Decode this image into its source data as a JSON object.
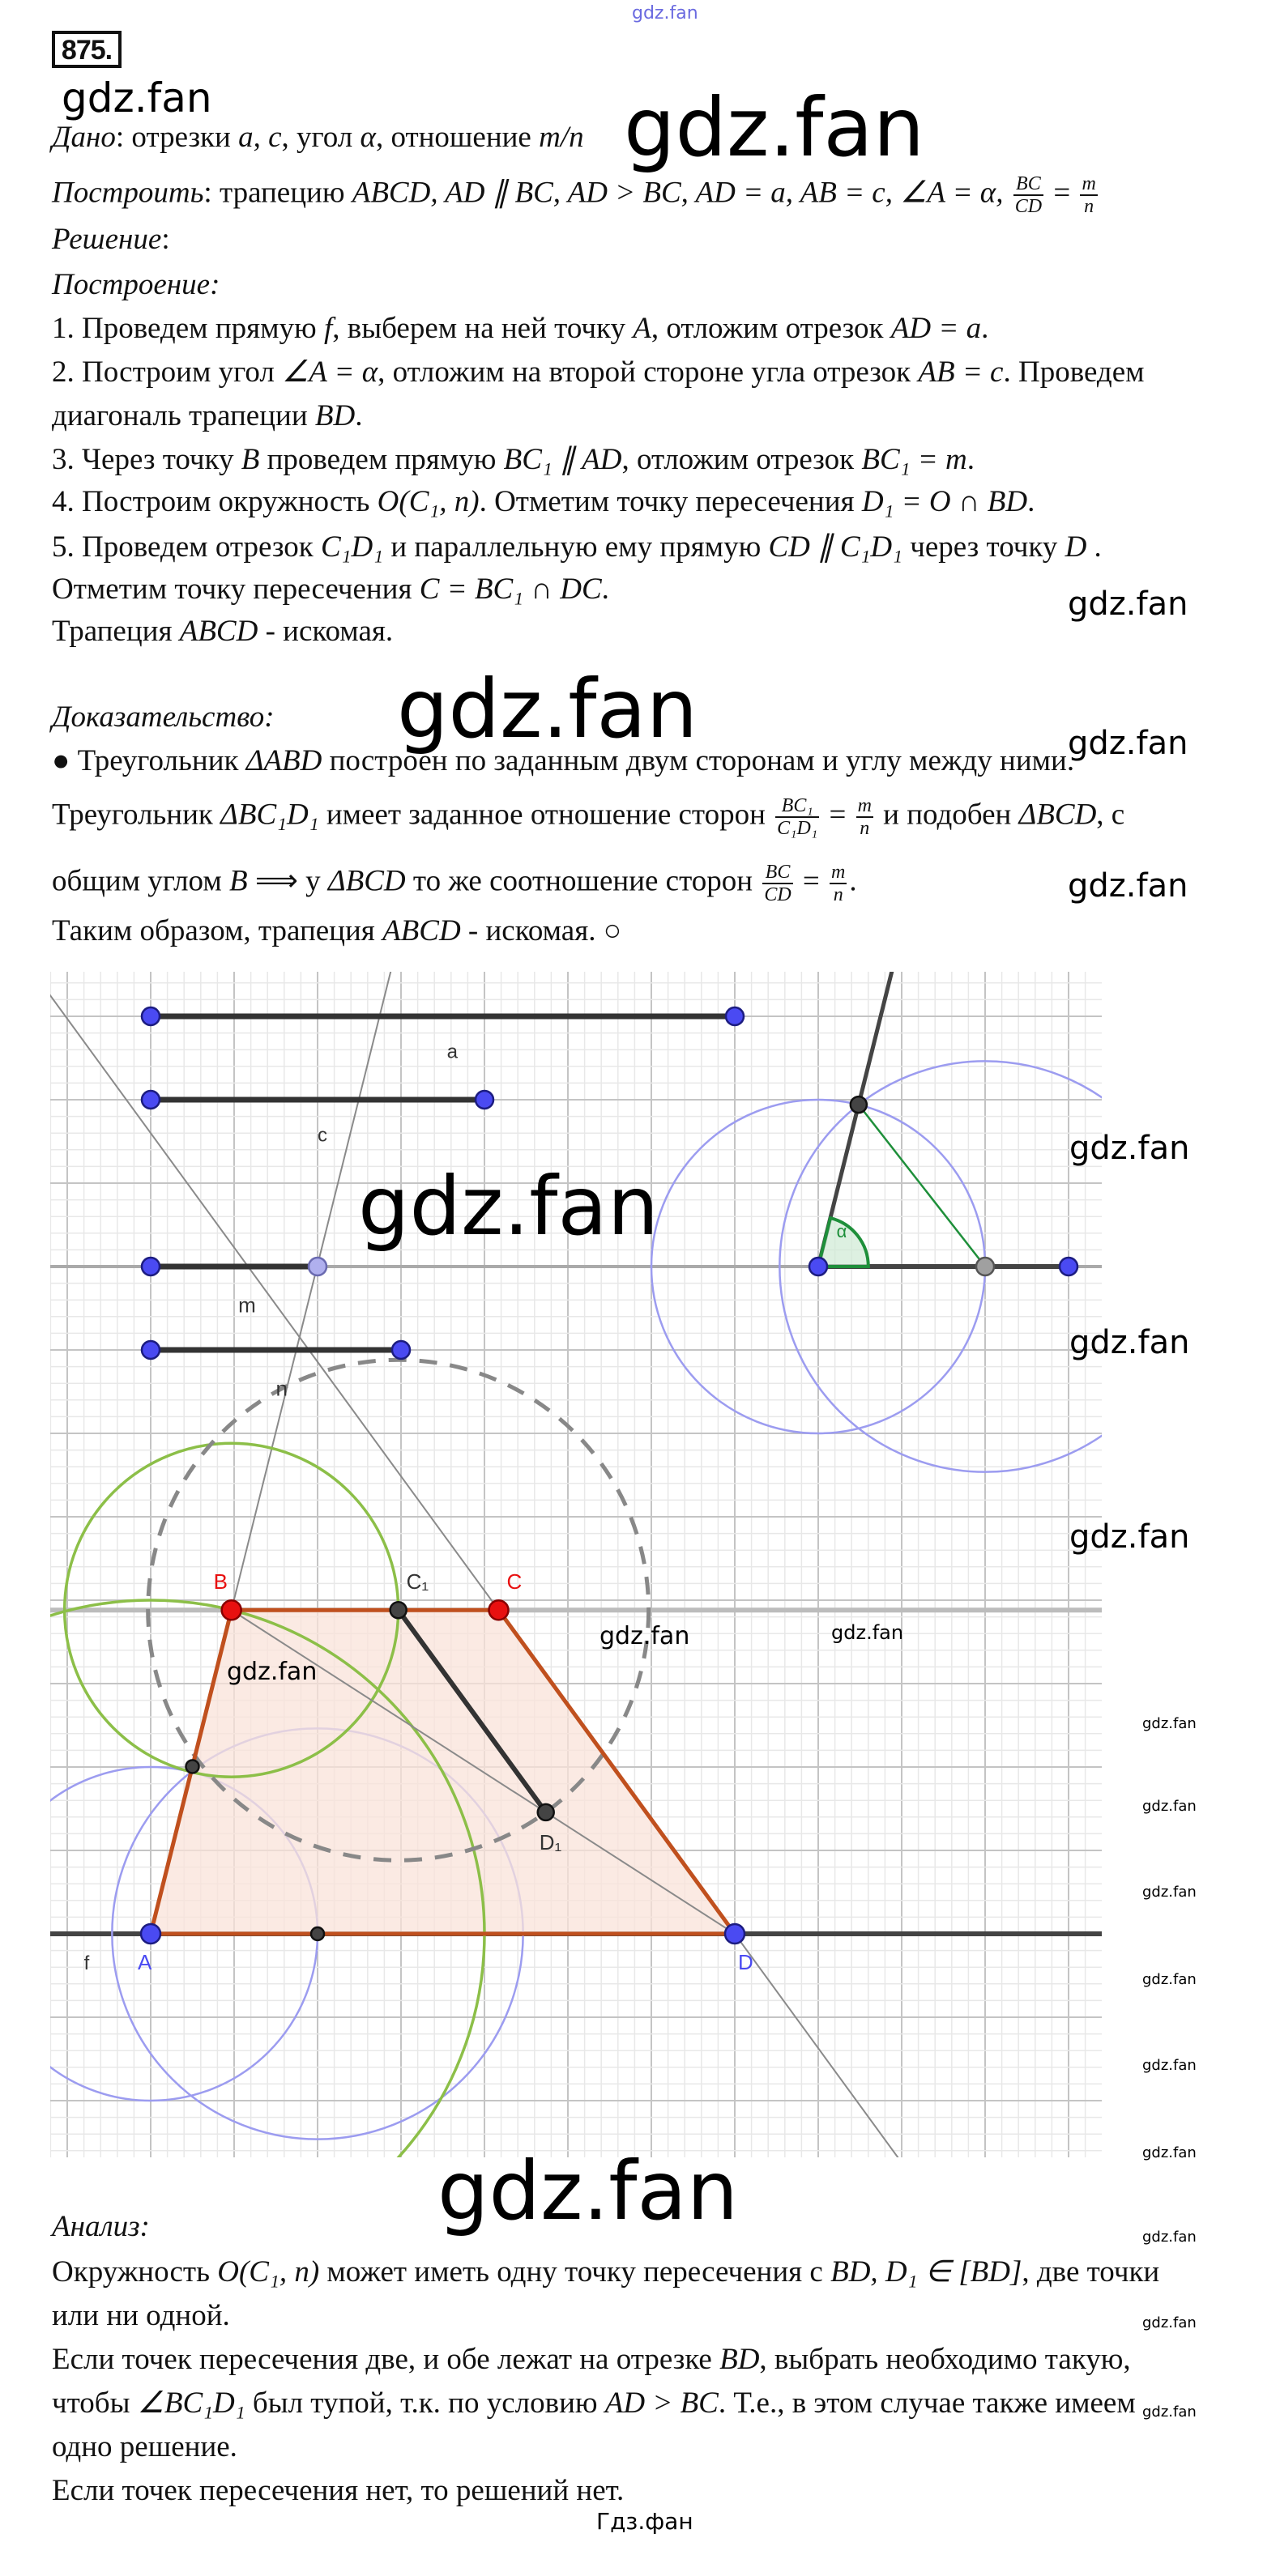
{
  "problem_number": "875.",
  "text": {
    "lines": [
      {
        "parts": [
          [
            "i",
            "Дано"
          ],
          [
            "t",
            ": отрезки "
          ],
          [
            "i",
            "a, c"
          ],
          [
            "t",
            ", угол "
          ],
          [
            "i",
            "α"
          ],
          [
            "t",
            ", отношение "
          ],
          [
            "i",
            "m/n"
          ]
        ]
      },
      {
        "parts": [
          [
            "i",
            "Построить"
          ],
          [
            "t",
            ": трапецию "
          ],
          [
            "i",
            "ABCD, AD ∥ BC, AD > BC, AD = a, AB = c, ∠A = α, "
          ],
          [
            "f",
            "BC",
            "CD"
          ],
          [
            "t",
            " = "
          ],
          [
            "f",
            "m",
            "n"
          ]
        ]
      },
      {
        "parts": [
          [
            "i",
            "Решение"
          ],
          [
            "t",
            ":"
          ]
        ]
      },
      {
        "parts": [
          [
            "i",
            "Построение:"
          ]
        ]
      },
      {
        "parts": [
          [
            "t",
            "1. Проведем прямую "
          ],
          [
            "i",
            "f"
          ],
          [
            "t",
            ", выберем на ней точку "
          ],
          [
            "i",
            "A"
          ],
          [
            "t",
            ", отложим отрезок "
          ],
          [
            "i",
            "AD = a"
          ],
          [
            "t",
            "."
          ]
        ]
      },
      {
        "parts": [
          [
            "t",
            "2. Построим угол "
          ],
          [
            "i",
            "∠A = α"
          ],
          [
            "t",
            ", отложим на второй стороне угла отрезок "
          ],
          [
            "i",
            "AB = c"
          ],
          [
            "t",
            ". Проведем"
          ]
        ]
      },
      {
        "parts": [
          [
            "t",
            "диагональ трапеции "
          ],
          [
            "i",
            "BD"
          ],
          [
            "t",
            "."
          ]
        ]
      },
      {
        "parts": [
          [
            "t",
            "3. Через точку "
          ],
          [
            "i",
            "B"
          ],
          [
            "t",
            " проведем прямую "
          ],
          [
            "i",
            "BC₁ ∥ AD"
          ],
          [
            "t",
            ", отложим отрезок "
          ],
          [
            "i",
            "BC₁ = m"
          ],
          [
            "t",
            "."
          ]
        ]
      },
      {
        "parts": [
          [
            "t",
            "4. Построим окружность "
          ],
          [
            "i",
            "O(C₁, n)"
          ],
          [
            "t",
            ". Отметим точку пересечения "
          ],
          [
            "i",
            "D₁ = O ∩ BD"
          ],
          [
            "t",
            "."
          ]
        ]
      },
      {
        "parts": [
          [
            "t",
            "5. Проведем отрезок "
          ],
          [
            "i",
            "C₁D₁"
          ],
          [
            "t",
            " и параллельную ему прямую "
          ],
          [
            "i",
            "CD ∥ C₁D₁"
          ],
          [
            "t",
            " через точку "
          ],
          [
            "i",
            "D"
          ],
          [
            "t",
            " ."
          ]
        ]
      },
      {
        "parts": [
          [
            "t",
            "Отметим точку пересечения "
          ],
          [
            "i",
            "C = BC₁ ∩ DC"
          ],
          [
            "t",
            "."
          ]
        ]
      },
      {
        "parts": [
          [
            "t",
            "Трапеция "
          ],
          [
            "i",
            "ABCD"
          ],
          [
            "t",
            " - искомая."
          ]
        ]
      },
      {
        "parts": [
          [
            "i",
            "Доказательство:"
          ]
        ]
      },
      {
        "parts": [
          [
            "t",
            "● Треугольник "
          ],
          [
            "i",
            "ΔABD"
          ],
          [
            "t",
            " построен по заданным двум сторонам и углу между ними."
          ]
        ]
      },
      {
        "parts": [
          [
            "t",
            "Треугольник "
          ],
          [
            "i",
            "ΔBC₁D₁"
          ],
          [
            "t",
            " имеет заданное отношение сторон "
          ],
          [
            "f",
            "BC₁",
            "C₁D₁"
          ],
          [
            "t",
            " = "
          ],
          [
            "f",
            "m",
            "n"
          ],
          [
            "t",
            " и подобен "
          ],
          [
            "i",
            "ΔBCD"
          ],
          [
            "t",
            ", с"
          ]
        ]
      },
      {
        "parts": [
          [
            "t",
            "общим углом "
          ],
          [
            "i",
            "B"
          ],
          [
            "t",
            " ⟹ у "
          ],
          [
            "i",
            "ΔBCD"
          ],
          [
            "t",
            " то же соотношение сторон "
          ],
          [
            "f",
            "BC",
            "CD"
          ],
          [
            "t",
            " = "
          ],
          [
            "f",
            "m",
            "n"
          ],
          [
            "t",
            "."
          ]
        ]
      },
      {
        "parts": [
          [
            "t",
            "Таким образом, трапеция "
          ],
          [
            "i",
            "ABCD"
          ],
          [
            "t",
            " - искомая. ○"
          ]
        ]
      },
      {
        "parts": [
          [
            "i",
            "Анализ:"
          ]
        ]
      },
      {
        "parts": [
          [
            "t",
            "Окружность "
          ],
          [
            "i",
            "O(C₁, n)"
          ],
          [
            "t",
            " может иметь одну точку пересечения с "
          ],
          [
            "i",
            "BD, D₁ ∈ [BD]"
          ],
          [
            "t",
            ", две точки"
          ]
        ]
      },
      {
        "parts": [
          [
            "t",
            "или ни одной."
          ]
        ]
      },
      {
        "parts": [
          [
            "t",
            "Если точек пересечения две, и обе лежат на отрезке "
          ],
          [
            "i",
            "BD"
          ],
          [
            "t",
            ", выбрать необходимо такую,"
          ]
        ]
      },
      {
        "parts": [
          [
            "t",
            "чтобы "
          ],
          [
            "i",
            "∠BC₁D₁"
          ],
          [
            "t",
            " был тупой, т.к. по условию "
          ],
          [
            "i",
            "AD > BC"
          ],
          [
            "t",
            ". Т.е., в этом случае также имеем"
          ]
        ]
      },
      {
        "parts": [
          [
            "t",
            "одно решение."
          ]
        ]
      },
      {
        "parts": [
          [
            "t",
            "Если точек пересечения нет, то решений нет."
          ]
        ]
      }
    ]
  },
  "figure": {
    "labels": {
      "a": "a",
      "c": "c",
      "m": "m",
      "n": "n",
      "A": "A",
      "B": "B",
      "C": "C",
      "C1": "C₁",
      "D": "D",
      "D1": "D₁",
      "f": "f",
      "alpha": "α"
    },
    "colors": {
      "segment": "#333333",
      "point_blue": "#4a4af2",
      "point_red": "#e81010",
      "trapezoid_edge": "#c0501e",
      "trapezoid_fill": "#f9e3da",
      "circle_blue": "#9c9cf0",
      "circle_green": "#8cbf48",
      "angle_green": "#1e8f3a",
      "grid_major": "#c4c4c4",
      "grid_minor": "#e8e8e8"
    }
  },
  "watermarks": {
    "main": "gdz.fan",
    "footer": "Гдз.фан"
  }
}
